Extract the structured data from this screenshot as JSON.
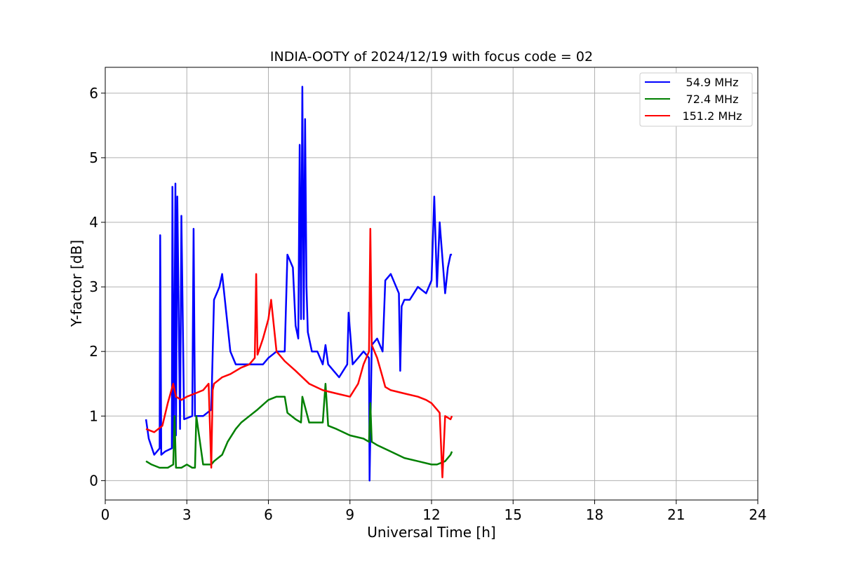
{
  "chart_data": {
    "type": "line",
    "title": "INDIA-OOTY of 2024/12/19 with focus code = 02",
    "xlabel": "Universal Time [h]",
    "ylabel": "Y-factor [dB]",
    "xlim": [
      0,
      24
    ],
    "ylim": [
      -0.3,
      6.4
    ],
    "xticks": [
      0,
      3,
      6,
      9,
      12,
      15,
      18,
      21,
      24
    ],
    "yticks": [
      0,
      1,
      2,
      3,
      4,
      5,
      6
    ],
    "grid": true,
    "legend_position": "top-right",
    "series": [
      {
        "name": "54.9 MHz",
        "color": "#0000ff",
        "x": [
          1.5,
          1.6,
          1.8,
          2.0,
          2.02,
          2.06,
          2.2,
          2.45,
          2.47,
          2.52,
          2.58,
          2.6,
          2.65,
          2.75,
          2.8,
          2.9,
          3.2,
          3.25,
          3.3,
          3.6,
          3.9,
          4.0,
          4.2,
          4.3,
          4.4,
          4.6,
          4.8,
          5.0,
          5.5,
          5.8,
          6.0,
          6.3,
          6.6,
          6.7,
          6.9,
          7.0,
          7.1,
          7.15,
          7.2,
          7.25,
          7.3,
          7.35,
          7.4,
          7.45,
          7.6,
          7.8,
          8.0,
          8.1,
          8.2,
          8.4,
          8.6,
          8.9,
          8.95,
          9.1,
          9.3,
          9.5,
          9.7,
          9.72,
          9.8,
          10.0,
          10.2,
          10.3,
          10.5,
          10.8,
          10.85,
          10.9,
          11.0,
          11.2,
          11.5,
          11.8,
          12.0,
          12.1,
          12.2,
          12.3,
          12.5,
          12.6,
          12.7,
          12.75
        ],
        "y": [
          0.95,
          0.65,
          0.4,
          0.5,
          3.8,
          0.4,
          0.45,
          0.5,
          4.55,
          0.5,
          4.6,
          0.7,
          4.4,
          0.8,
          4.1,
          0.95,
          1.0,
          3.9,
          1.0,
          1.0,
          1.1,
          2.8,
          3.0,
          3.2,
          2.8,
          2.0,
          1.8,
          1.8,
          1.8,
          1.8,
          1.9,
          2.0,
          2.0,
          3.5,
          3.3,
          2.4,
          2.2,
          5.2,
          2.5,
          6.1,
          2.5,
          5.6,
          3.0,
          2.3,
          2.0,
          2.0,
          1.8,
          2.1,
          1.8,
          1.7,
          1.6,
          1.8,
          2.6,
          1.8,
          1.9,
          2.0,
          1.9,
          0.0,
          2.1,
          2.2,
          2.0,
          3.1,
          3.2,
          2.9,
          1.7,
          2.7,
          2.8,
          2.8,
          3.0,
          2.9,
          3.1,
          4.4,
          3.0,
          4.0,
          2.9,
          3.3,
          3.5,
          3.5
        ]
      },
      {
        "name": "72.4 MHz",
        "color": "#008000",
        "x": [
          1.5,
          1.7,
          2.0,
          2.3,
          2.5,
          2.55,
          2.6,
          2.8,
          3.0,
          3.2,
          3.3,
          3.35,
          3.6,
          3.9,
          4.0,
          4.3,
          4.5,
          4.8,
          5.0,
          5.3,
          5.6,
          6.0,
          6.3,
          6.6,
          6.7,
          7.0,
          7.2,
          7.25,
          7.5,
          8.0,
          8.1,
          8.2,
          8.5,
          9.0,
          9.5,
          9.7,
          9.75,
          9.8,
          10.0,
          10.5,
          11.0,
          11.5,
          12.0,
          12.2,
          12.5,
          12.7,
          12.75
        ],
        "y": [
          0.3,
          0.25,
          0.2,
          0.2,
          0.25,
          1.0,
          0.2,
          0.2,
          0.25,
          0.2,
          0.2,
          1.0,
          0.25,
          0.25,
          0.3,
          0.4,
          0.6,
          0.8,
          0.9,
          1.0,
          1.1,
          1.25,
          1.3,
          1.3,
          1.05,
          0.95,
          0.9,
          1.3,
          0.9,
          0.9,
          1.5,
          0.85,
          0.8,
          0.7,
          0.65,
          0.6,
          1.2,
          0.6,
          0.55,
          0.45,
          0.35,
          0.3,
          0.25,
          0.25,
          0.3,
          0.4,
          0.45
        ]
      },
      {
        "name": "151.2 MHz",
        "color": "#ff0000",
        "x": [
          1.5,
          1.8,
          2.1,
          2.3,
          2.5,
          2.6,
          2.8,
          3.0,
          3.3,
          3.6,
          3.8,
          3.9,
          3.95,
          4.0,
          4.3,
          4.6,
          5.0,
          5.3,
          5.5,
          5.55,
          5.6,
          5.8,
          6.0,
          6.1,
          6.3,
          6.6,
          7.0,
          7.5,
          8.0,
          8.5,
          9.0,
          9.3,
          9.5,
          9.7,
          9.75,
          9.8,
          10.0,
          10.2,
          10.3,
          10.5,
          11.0,
          11.5,
          11.8,
          12.0,
          12.2,
          12.3,
          12.4,
          12.5,
          12.7,
          12.75
        ],
        "y": [
          0.8,
          0.75,
          0.85,
          1.2,
          1.5,
          1.3,
          1.25,
          1.3,
          1.35,
          1.4,
          1.5,
          0.2,
          1.4,
          1.5,
          1.6,
          1.65,
          1.75,
          1.8,
          1.9,
          3.2,
          1.95,
          2.2,
          2.5,
          2.8,
          2.0,
          1.85,
          1.7,
          1.5,
          1.4,
          1.35,
          1.3,
          1.5,
          1.8,
          2.0,
          3.9,
          2.1,
          1.9,
          1.6,
          1.45,
          1.4,
          1.35,
          1.3,
          1.25,
          1.2,
          1.1,
          1.05,
          0.05,
          1.0,
          0.95,
          1.0
        ]
      }
    ]
  }
}
